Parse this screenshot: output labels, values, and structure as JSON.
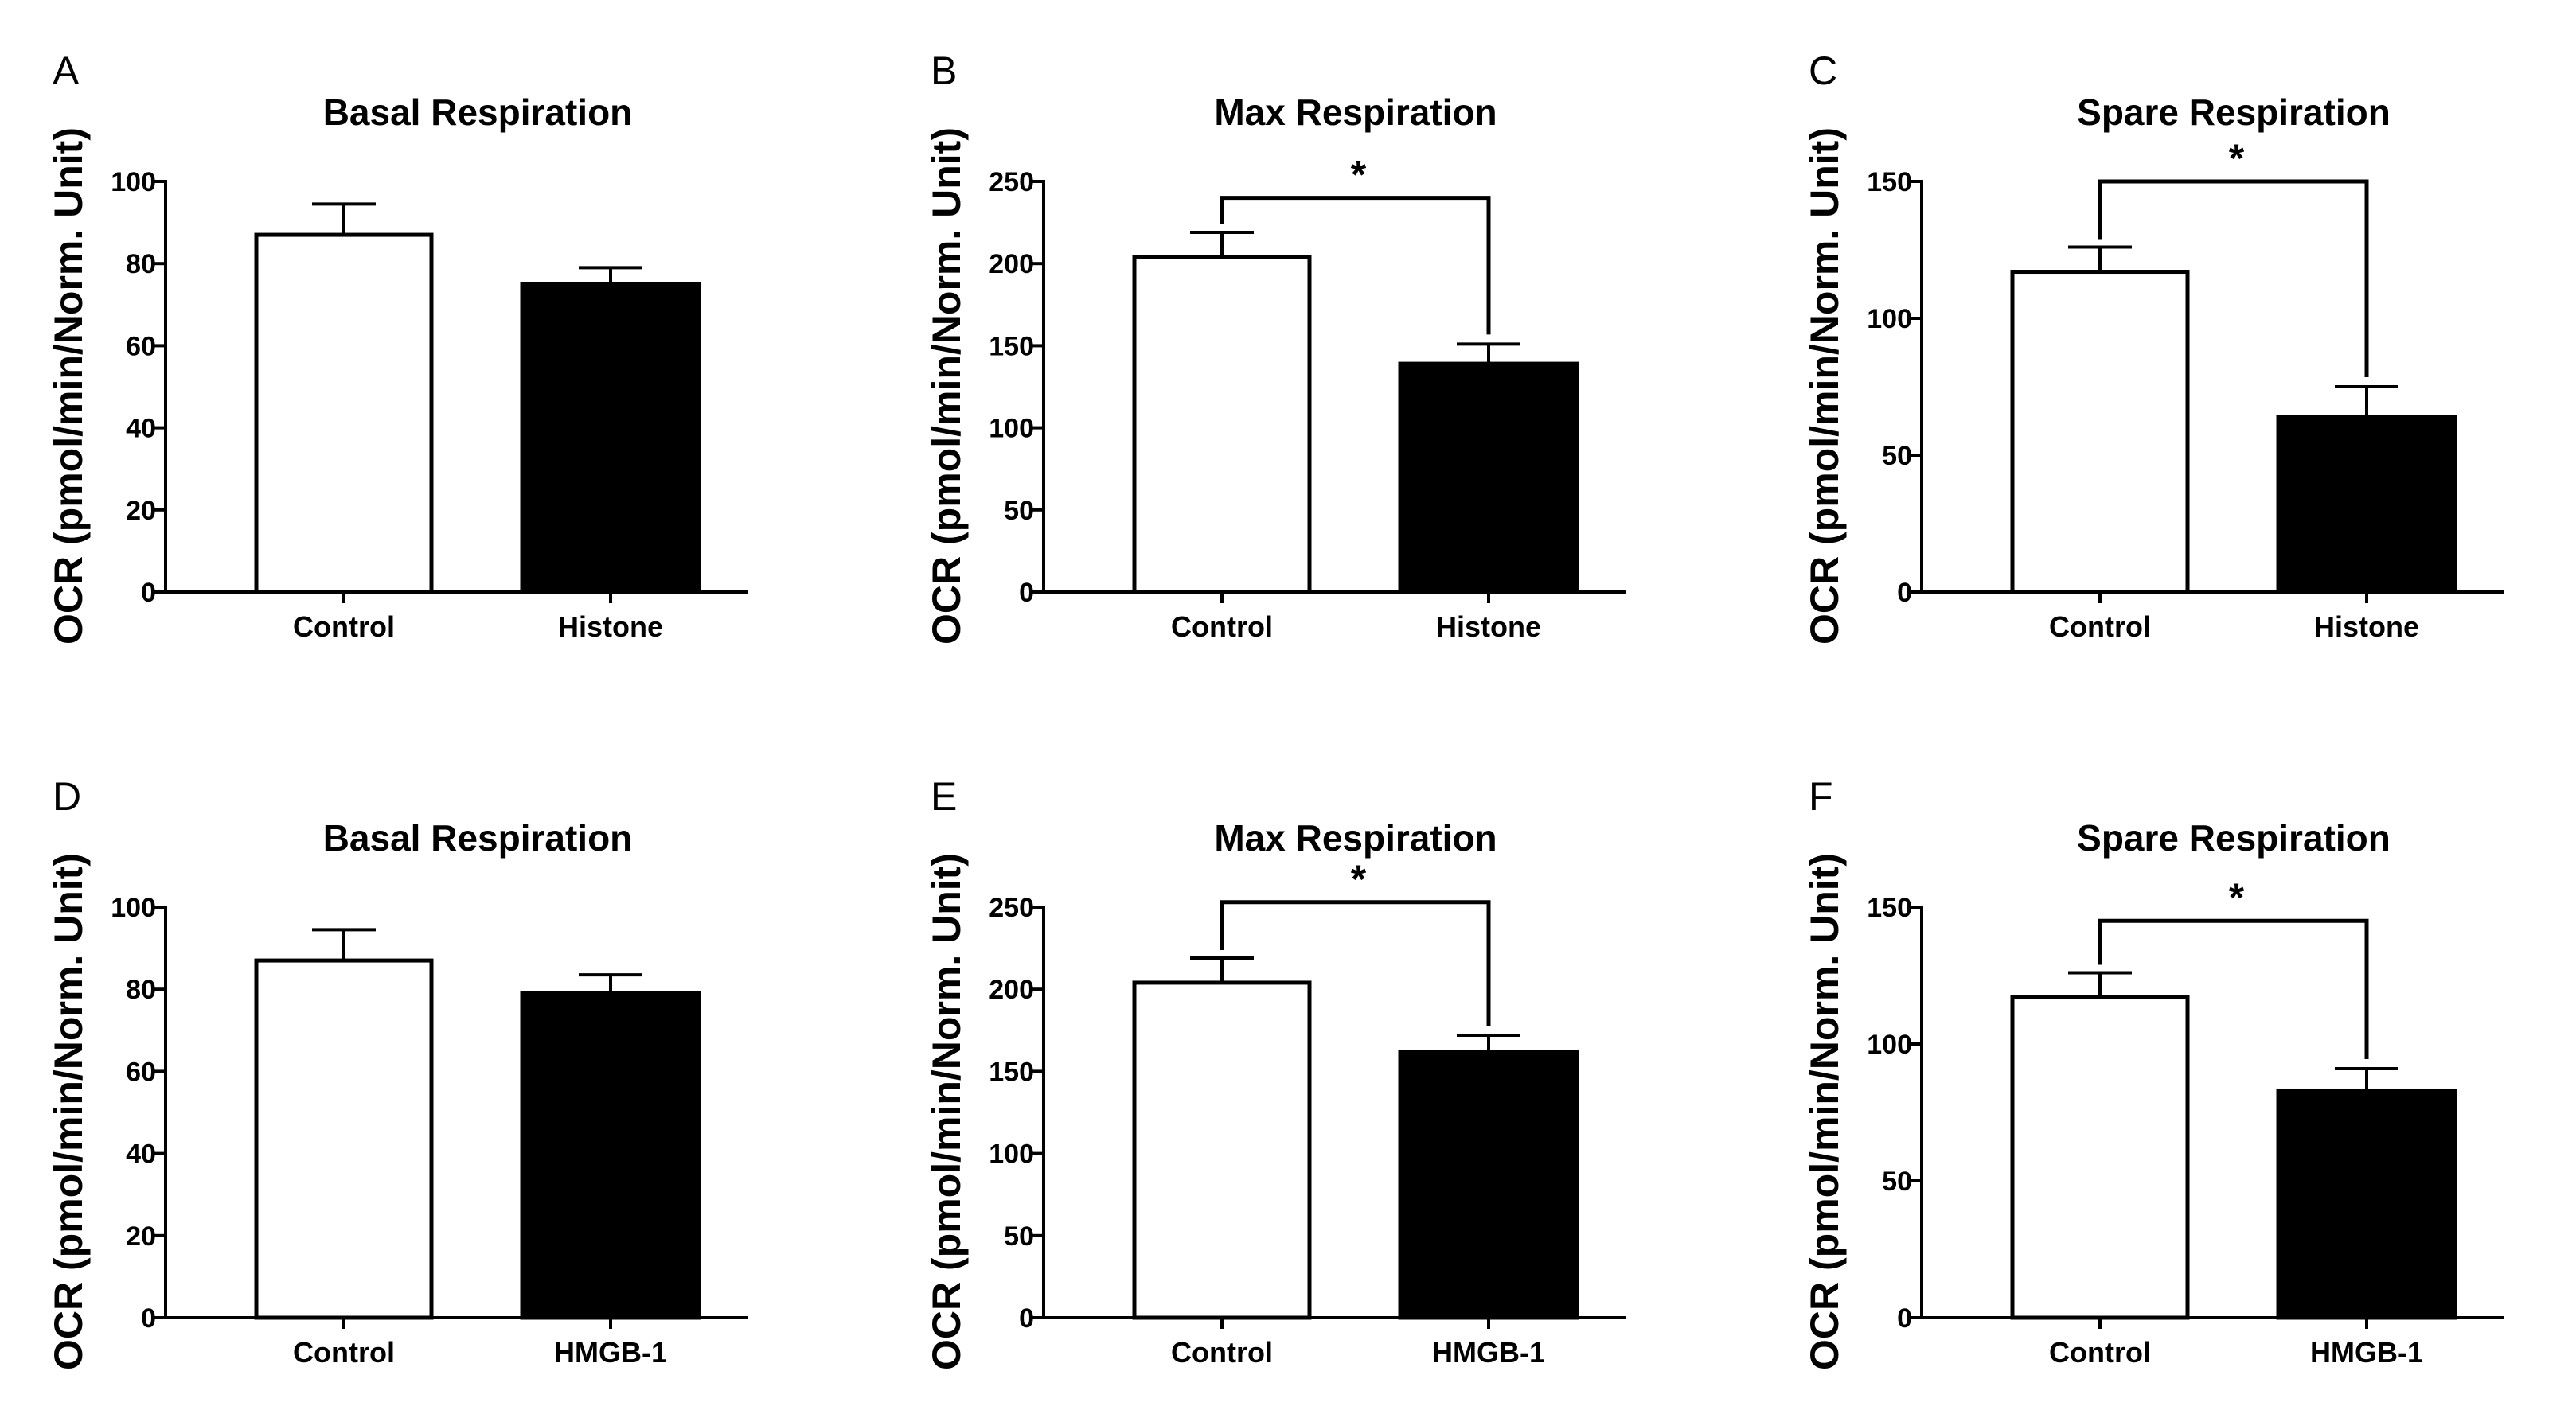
{
  "colors": {
    "control_fill": "#ffffff",
    "treatment_fill": "#000000",
    "stroke": "#000000"
  },
  "chart_data": [
    {
      "panel": "A",
      "type": "bar",
      "title": "Basal Respiration",
      "ylabel": "OCR (pmol/min/Norm. Unit)",
      "xlabel": "",
      "categories": [
        "Control",
        "Histone"
      ],
      "values": [
        87,
        75
      ],
      "errors": [
        7.5,
        4
      ],
      "ylim": [
        0,
        100
      ],
      "yticks": [
        "0",
        "20",
        "40",
        "60",
        "80",
        "100"
      ],
      "yticks_num": [
        0,
        20,
        40,
        60,
        80,
        100
      ],
      "significance": null
    },
    {
      "panel": "B",
      "type": "bar",
      "title": "Max Respiration",
      "ylabel": "OCR (pmol/min/Norm. Unit)",
      "xlabel": "",
      "categories": [
        "Control",
        "Histone"
      ],
      "values": [
        204,
        139
      ],
      "errors": [
        15,
        12
      ],
      "ylim": [
        0,
        250
      ],
      "yticks": [
        "0",
        "50",
        "100",
        "150",
        "200",
        "250"
      ],
      "yticks_num": [
        0,
        50,
        100,
        150,
        200,
        250
      ],
      "significance": {
        "label": "*",
        "level": 240
      }
    },
    {
      "panel": "C",
      "type": "bar",
      "title": "Spare Respiration",
      "ylabel": "OCR (pmol/min/Norm. Unit)",
      "xlabel": "",
      "categories": [
        "Control",
        "Histone"
      ],
      "values": [
        117,
        64
      ],
      "errors": [
        9,
        11
      ],
      "ylim": [
        0,
        150
      ],
      "yticks": [
        "0",
        "50",
        "100",
        "150"
      ],
      "yticks_num": [
        0,
        50,
        100,
        150
      ],
      "significance": {
        "label": "*",
        "level": 150
      }
    },
    {
      "panel": "D",
      "type": "bar",
      "title": "Basal Respiration",
      "ylabel": "OCR (pmol/min/Norm. Unit)",
      "xlabel": "",
      "categories": [
        "Control",
        "HMGB-1"
      ],
      "values": [
        87,
        79
      ],
      "errors": [
        7.5,
        4.5
      ],
      "ylim": [
        0,
        100
      ],
      "yticks": [
        "0",
        "20",
        "40",
        "60",
        "80",
        "100"
      ],
      "yticks_num": [
        0,
        20,
        40,
        60,
        80,
        100
      ],
      "significance": null
    },
    {
      "panel": "E",
      "type": "bar",
      "title": "Max Respiration",
      "ylabel": "OCR (pmol/min/Norm. Unit)",
      "xlabel": "",
      "categories": [
        "Control",
        "HMGB-1"
      ],
      "values": [
        204,
        162
      ],
      "errors": [
        15,
        10
      ],
      "ylim": [
        0,
        250
      ],
      "yticks": [
        "0",
        "50",
        "100",
        "150",
        "200",
        "250"
      ],
      "yticks_num": [
        0,
        50,
        100,
        150,
        200,
        250
      ],
      "significance": {
        "label": "*",
        "level": 253
      }
    },
    {
      "panel": "F",
      "type": "bar",
      "title": "Spare Respiration",
      "ylabel": "OCR (pmol/min/Norm. Unit)",
      "xlabel": "",
      "categories": [
        "Control",
        "HMGB-1"
      ],
      "values": [
        117,
        83
      ],
      "errors": [
        9,
        8
      ],
      "ylim": [
        0,
        150
      ],
      "yticks": [
        "0",
        "50",
        "100",
        "150"
      ],
      "yticks_num": [
        0,
        50,
        100,
        150
      ],
      "significance": {
        "label": "*",
        "level": 145
      }
    }
  ]
}
